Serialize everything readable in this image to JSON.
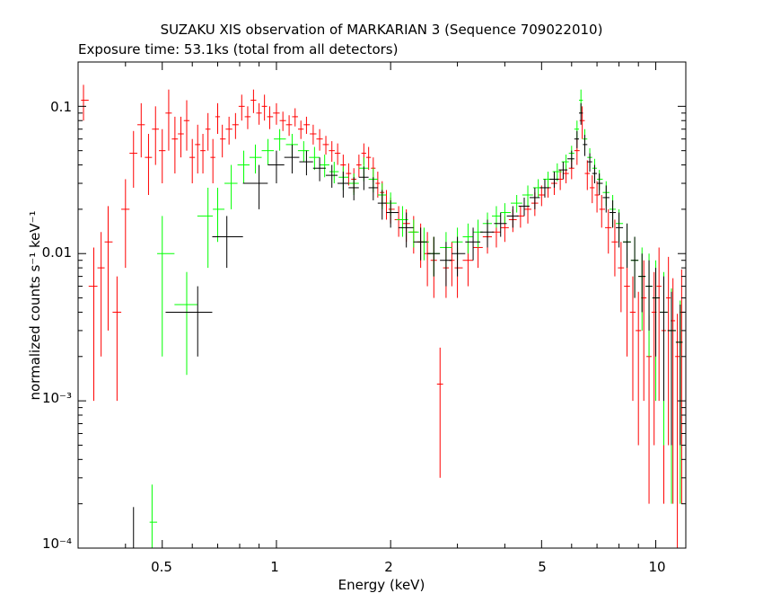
{
  "chart_data": {
    "type": "scatter",
    "title": "SUZAKU XIS observation of MARKARIAN 3 (Sequence 709022010)",
    "subtitle": "Exposure time: 53.1ks (total from all detectors)",
    "xlabel": "Energy (keV)",
    "ylabel": "normalized counts s⁻¹ keV⁻¹",
    "xscale": "log",
    "yscale": "log",
    "xlim": [
      0.3,
      12
    ],
    "ylim": [
      0.0001,
      0.2
    ],
    "x_ticks": [
      "0.5",
      "1",
      "2",
      "5",
      "10"
    ],
    "y_ticks": [
      "0.1",
      "0.01",
      "10⁻³",
      "10⁻⁴"
    ],
    "grid": false,
    "colors": {
      "red": "#ff0000",
      "green": "#00ff00",
      "black": "#000000"
    },
    "series": [
      {
        "color": "red",
        "points": [
          [
            0.31,
            0.11,
            0.03
          ],
          [
            0.33,
            0.006,
            0.005
          ],
          [
            0.345,
            0.008,
            0.006
          ],
          [
            0.36,
            0.012,
            0.009
          ],
          [
            0.38,
            0.004,
            0.003
          ],
          [
            0.4,
            0.02,
            0.012
          ],
          [
            0.42,
            0.048,
            0.02
          ],
          [
            0.44,
            0.075,
            0.03
          ],
          [
            0.46,
            0.045,
            0.02
          ],
          [
            0.48,
            0.07,
            0.03
          ],
          [
            0.5,
            0.05,
            0.02
          ],
          [
            0.52,
            0.09,
            0.04
          ],
          [
            0.54,
            0.06,
            0.025
          ],
          [
            0.56,
            0.065,
            0.02
          ],
          [
            0.58,
            0.08,
            0.03
          ],
          [
            0.6,
            0.045,
            0.015
          ],
          [
            0.62,
            0.055,
            0.02
          ],
          [
            0.64,
            0.05,
            0.015
          ],
          [
            0.66,
            0.07,
            0.02
          ],
          [
            0.68,
            0.045,
            0.015
          ],
          [
            0.7,
            0.085,
            0.02
          ],
          [
            0.72,
            0.06,
            0.015
          ],
          [
            0.75,
            0.07,
            0.015
          ],
          [
            0.78,
            0.075,
            0.015
          ],
          [
            0.81,
            0.1,
            0.02
          ],
          [
            0.84,
            0.085,
            0.015
          ],
          [
            0.87,
            0.11,
            0.02
          ],
          [
            0.9,
            0.09,
            0.015
          ],
          [
            0.93,
            0.1,
            0.02
          ],
          [
            0.96,
            0.085,
            0.015
          ],
          [
            1.0,
            0.09,
            0.015
          ],
          [
            1.04,
            0.08,
            0.012
          ],
          [
            1.08,
            0.075,
            0.012
          ],
          [
            1.12,
            0.085,
            0.012
          ],
          [
            1.16,
            0.07,
            0.01
          ],
          [
            1.2,
            0.075,
            0.01
          ],
          [
            1.25,
            0.065,
            0.01
          ],
          [
            1.3,
            0.06,
            0.01
          ],
          [
            1.35,
            0.055,
            0.008
          ],
          [
            1.4,
            0.05,
            0.008
          ],
          [
            1.45,
            0.048,
            0.008
          ],
          [
            1.5,
            0.04,
            0.007
          ],
          [
            1.55,
            0.035,
            0.006
          ],
          [
            1.6,
            0.032,
            0.006
          ],
          [
            1.65,
            0.04,
            0.007
          ],
          [
            1.7,
            0.048,
            0.008
          ],
          [
            1.75,
            0.045,
            0.008
          ],
          [
            1.8,
            0.038,
            0.007
          ],
          [
            1.85,
            0.03,
            0.006
          ],
          [
            1.9,
            0.026,
            0.005
          ],
          [
            1.95,
            0.022,
            0.005
          ],
          [
            2.0,
            0.02,
            0.004
          ],
          [
            2.1,
            0.017,
            0.004
          ],
          [
            2.2,
            0.016,
            0.004
          ],
          [
            2.3,
            0.014,
            0.004
          ],
          [
            2.4,
            0.012,
            0.004
          ],
          [
            2.5,
            0.01,
            0.004
          ],
          [
            2.6,
            0.009,
            0.004
          ],
          [
            2.7,
            0.0013,
            0.001
          ],
          [
            2.8,
            0.008,
            0.003
          ],
          [
            2.9,
            0.009,
            0.003
          ],
          [
            3.0,
            0.008,
            0.003
          ],
          [
            3.2,
            0.009,
            0.003
          ],
          [
            3.4,
            0.011,
            0.003
          ],
          [
            3.6,
            0.013,
            0.003
          ],
          [
            3.8,
            0.014,
            0.003
          ],
          [
            4.0,
            0.015,
            0.003
          ],
          [
            4.2,
            0.017,
            0.003
          ],
          [
            4.4,
            0.018,
            0.003
          ],
          [
            4.6,
            0.02,
            0.004
          ],
          [
            4.8,
            0.022,
            0.004
          ],
          [
            5.0,
            0.025,
            0.004
          ],
          [
            5.2,
            0.028,
            0.004
          ],
          [
            5.4,
            0.03,
            0.005
          ],
          [
            5.6,
            0.032,
            0.005
          ],
          [
            5.8,
            0.035,
            0.005
          ],
          [
            6.0,
            0.038,
            0.006
          ],
          [
            6.2,
            0.05,
            0.01
          ],
          [
            6.4,
            0.08,
            0.02
          ],
          [
            6.6,
            0.035,
            0.008
          ],
          [
            6.8,
            0.028,
            0.006
          ],
          [
            7.0,
            0.025,
            0.006
          ],
          [
            7.2,
            0.02,
            0.005
          ],
          [
            7.5,
            0.015,
            0.005
          ],
          [
            7.8,
            0.012,
            0.005
          ],
          [
            8.1,
            0.008,
            0.004
          ],
          [
            8.4,
            0.006,
            0.004
          ],
          [
            8.7,
            0.004,
            0.003
          ],
          [
            9.0,
            0.003,
            0.0025
          ],
          [
            9.3,
            0.005,
            0.004
          ],
          [
            9.6,
            0.002,
            0.0018
          ],
          [
            9.9,
            0.004,
            0.0035
          ],
          [
            10.2,
            0.006,
            0.005
          ],
          [
            10.5,
            0.003,
            0.0028
          ],
          [
            10.8,
            0.005,
            0.0045
          ],
          [
            11.1,
            0.0035,
            0.0033
          ],
          [
            11.4,
            0.002,
            0.0019
          ],
          [
            11.7,
            0.004,
            0.0038
          ]
        ]
      },
      {
        "color": "green",
        "points": [
          [
            0.47,
            0.00015,
            0.00012
          ],
          [
            0.5,
            0.01,
            0.008
          ],
          [
            0.58,
            0.0045,
            0.003
          ],
          [
            0.66,
            0.018,
            0.01
          ],
          [
            0.7,
            0.02,
            0.008
          ],
          [
            0.76,
            0.03,
            0.01
          ],
          [
            0.82,
            0.04,
            0.01
          ],
          [
            0.88,
            0.045,
            0.01
          ],
          [
            0.95,
            0.05,
            0.01
          ],
          [
            1.02,
            0.06,
            0.01
          ],
          [
            1.1,
            0.055,
            0.01
          ],
          [
            1.18,
            0.05,
            0.008
          ],
          [
            1.26,
            0.045,
            0.008
          ],
          [
            1.34,
            0.04,
            0.007
          ],
          [
            1.42,
            0.036,
            0.006
          ],
          [
            1.5,
            0.033,
            0.006
          ],
          [
            1.6,
            0.03,
            0.005
          ],
          [
            1.7,
            0.038,
            0.007
          ],
          [
            1.8,
            0.032,
            0.006
          ],
          [
            1.9,
            0.025,
            0.005
          ],
          [
            2.0,
            0.022,
            0.004
          ],
          [
            2.15,
            0.017,
            0.004
          ],
          [
            2.3,
            0.014,
            0.003
          ],
          [
            2.45,
            0.012,
            0.003
          ],
          [
            2.6,
            0.01,
            0.003
          ],
          [
            2.8,
            0.011,
            0.003
          ],
          [
            3.0,
            0.012,
            0.003
          ],
          [
            3.2,
            0.013,
            0.003
          ],
          [
            3.4,
            0.014,
            0.003
          ],
          [
            3.6,
            0.016,
            0.003
          ],
          [
            3.8,
            0.018,
            0.003
          ],
          [
            4.0,
            0.019,
            0.003
          ],
          [
            4.3,
            0.022,
            0.003
          ],
          [
            4.6,
            0.025,
            0.004
          ],
          [
            4.9,
            0.028,
            0.004
          ],
          [
            5.2,
            0.032,
            0.004
          ],
          [
            5.5,
            0.036,
            0.005
          ],
          [
            5.8,
            0.042,
            0.005
          ],
          [
            6.0,
            0.048,
            0.006
          ],
          [
            6.2,
            0.07,
            0.01
          ],
          [
            6.35,
            0.11,
            0.02
          ],
          [
            6.5,
            0.06,
            0.01
          ],
          [
            6.7,
            0.045,
            0.007
          ],
          [
            6.9,
            0.038,
            0.006
          ],
          [
            7.1,
            0.032,
            0.005
          ],
          [
            7.4,
            0.026,
            0.005
          ],
          [
            7.7,
            0.02,
            0.005
          ],
          [
            8.0,
            0.016,
            0.004
          ],
          [
            8.4,
            0.012,
            0.004
          ],
          [
            8.8,
            0.009,
            0.004
          ],
          [
            9.2,
            0.007,
            0.004
          ],
          [
            9.6,
            0.006,
            0.004
          ],
          [
            10.0,
            0.005,
            0.004
          ],
          [
            10.5,
            0.004,
            0.0035
          ],
          [
            11.0,
            0.003,
            0.0028
          ],
          [
            11.6,
            0.0025,
            0.0023
          ]
        ]
      },
      {
        "color": "black",
        "points": [
          [
            0.42,
            0.0001,
            9e-05
          ],
          [
            0.62,
            0.004,
            0.002
          ],
          [
            0.74,
            0.013,
            0.005
          ],
          [
            0.9,
            0.03,
            0.01
          ],
          [
            1.0,
            0.04,
            0.01
          ],
          [
            1.1,
            0.045,
            0.01
          ],
          [
            1.2,
            0.042,
            0.008
          ],
          [
            1.3,
            0.038,
            0.007
          ],
          [
            1.4,
            0.034,
            0.006
          ],
          [
            1.5,
            0.03,
            0.006
          ],
          [
            1.6,
            0.028,
            0.005
          ],
          [
            1.7,
            0.033,
            0.006
          ],
          [
            1.8,
            0.028,
            0.005
          ],
          [
            1.9,
            0.022,
            0.005
          ],
          [
            2.0,
            0.019,
            0.004
          ],
          [
            2.2,
            0.015,
            0.004
          ],
          [
            2.4,
            0.012,
            0.003
          ],
          [
            2.6,
            0.01,
            0.003
          ],
          [
            2.8,
            0.009,
            0.003
          ],
          [
            3.0,
            0.01,
            0.003
          ],
          [
            3.3,
            0.012,
            0.003
          ],
          [
            3.6,
            0.014,
            0.003
          ],
          [
            3.9,
            0.016,
            0.003
          ],
          [
            4.2,
            0.018,
            0.003
          ],
          [
            4.5,
            0.021,
            0.003
          ],
          [
            4.8,
            0.024,
            0.004
          ],
          [
            5.1,
            0.028,
            0.004
          ],
          [
            5.4,
            0.032,
            0.004
          ],
          [
            5.7,
            0.037,
            0.005
          ],
          [
            6.0,
            0.044,
            0.006
          ],
          [
            6.2,
            0.06,
            0.008
          ],
          [
            6.35,
            0.09,
            0.015
          ],
          [
            6.5,
            0.055,
            0.009
          ],
          [
            6.7,
            0.042,
            0.006
          ],
          [
            6.9,
            0.035,
            0.005
          ],
          [
            7.1,
            0.03,
            0.005
          ],
          [
            7.4,
            0.024,
            0.005
          ],
          [
            7.7,
            0.019,
            0.004
          ],
          [
            8.0,
            0.015,
            0.004
          ],
          [
            8.4,
            0.012,
            0.004
          ],
          [
            8.8,
            0.009,
            0.004
          ],
          [
            9.2,
            0.007,
            0.003
          ],
          [
            9.6,
            0.006,
            0.003
          ],
          [
            10.0,
            0.005,
            0.003
          ],
          [
            10.5,
            0.004,
            0.003
          ],
          [
            11.0,
            0.003,
            0.0025
          ],
          [
            11.6,
            0.0025,
            0.002
          ]
        ]
      }
    ]
  }
}
